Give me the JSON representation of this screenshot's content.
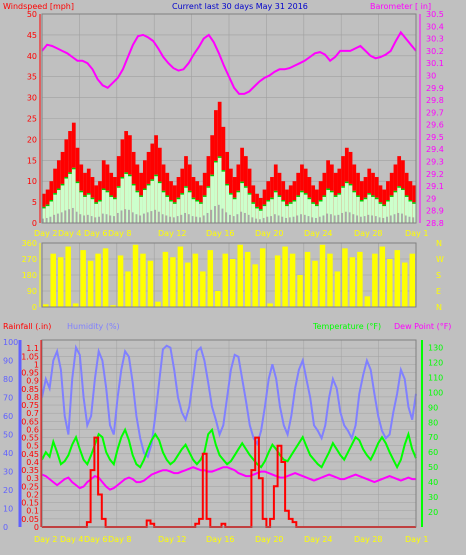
{
  "header": {
    "left": "Windspeed [mph]",
    "center": "Current last 30 days May 31 2016",
    "right": "Barometer [ in]"
  },
  "lower_header": {
    "rainfall": "Rainfall (.in)",
    "humidity": "Humidity (%)",
    "temperature": "Temperature (°F)",
    "dewpoint": "Dew Point (°F)"
  },
  "colors": {
    "background": "#c0c0c0",
    "wind": "#ff0000",
    "wind_gust": "#00cc00",
    "wind_avg": "#ccffcc",
    "wind_min": "#a8a8a8",
    "barometer": "#ff00ff",
    "direction": "#ffff00",
    "humidity": "#8080ff",
    "temperature": "#00ff00",
    "dewpoint": "#ff00ff",
    "rainfall": "#ff0000",
    "axis_red": "#ff0000",
    "axis_blue": "#6060ff",
    "axis_green": "#00ff00",
    "axis_magenta": "#ff00ff",
    "date_yellow": "#ffff00"
  },
  "date_labels": [
    "Day 2",
    "Day 4",
    "Day 6",
    "Day 8",
    "Day 12",
    "Day 16",
    "Day 20",
    "Day 24",
    "Day 28",
    "Day 1"
  ],
  "chart_data": [
    {
      "type": "bar",
      "title": "Windspeed [mph]",
      "ylabel": "Windspeed [mph]",
      "y2label": "Barometer [ in]",
      "ylim": [
        0,
        50
      ],
      "y2lim": [
        28.8,
        30.5
      ],
      "yticks": [
        "0",
        "5",
        "10",
        "15",
        "20",
        "25",
        "30",
        "35",
        "40",
        "45",
        "50"
      ],
      "y2ticks": [
        "28.8",
        "28.9",
        "29",
        "29.1",
        "29.2",
        "29.3",
        "29.4",
        "29.5",
        "29.6",
        "29.7",
        "29.8",
        "29.9",
        "30",
        "30.1",
        "30.2",
        "30.3",
        "30.4",
        "30.5"
      ],
      "grid": true,
      "series": [
        {
          "name": "Windspeed",
          "values": [
            7,
            8,
            10,
            13,
            15,
            17,
            20,
            22,
            24,
            18,
            14,
            12,
            13,
            11,
            9,
            10,
            15,
            14,
            12,
            11,
            16,
            20,
            22,
            21,
            17,
            14,
            12,
            15,
            17,
            19,
            21,
            18,
            14,
            12,
            10,
            9,
            11,
            13,
            16,
            14,
            11,
            10,
            9,
            12,
            16,
            21,
            27,
            29,
            23,
            17,
            13,
            11,
            14,
            18,
            16,
            13,
            9,
            7,
            6,
            8,
            10,
            11,
            14,
            12,
            10,
            8,
            9,
            10,
            12,
            14,
            13,
            11,
            9,
            8,
            10,
            12,
            15,
            14,
            12,
            13,
            16,
            18,
            17,
            14,
            12,
            10,
            11,
            13,
            12,
            11,
            9,
            8,
            10,
            12,
            14,
            16,
            15,
            12,
            10,
            9
          ]
        },
        {
          "name": "Barometer",
          "values": [
            30.2,
            30.25,
            30.24,
            30.22,
            30.2,
            30.18,
            30.15,
            30.12,
            30.12,
            30.1,
            30.05,
            29.97,
            29.92,
            29.9,
            29.94,
            29.98,
            30.05,
            30.15,
            30.25,
            30.32,
            30.33,
            30.31,
            30.28,
            30.22,
            30.15,
            30.1,
            30.06,
            30.04,
            30.05,
            30.1,
            30.17,
            30.23,
            30.3,
            30.33,
            30.27,
            30.18,
            30.08,
            29.99,
            29.9,
            29.85,
            29.85,
            29.87,
            29.91,
            29.95,
            29.98,
            30.0,
            30.03,
            30.05,
            30.05,
            30.06,
            30.08,
            30.1,
            30.12,
            30.15,
            30.18,
            30.19,
            30.17,
            30.12,
            30.15,
            30.2,
            30.2,
            30.2,
            30.22,
            30.24,
            30.2,
            30.16,
            30.14,
            30.15,
            30.17,
            30.2,
            30.28,
            30.35,
            30.3,
            30.25,
            30.2
          ]
        }
      ]
    },
    {
      "type": "bar",
      "title": "",
      "ylabel": "Wind direction",
      "ylim": [
        0,
        360
      ],
      "yticks": [
        "0",
        "90",
        "180",
        "270",
        "360"
      ],
      "y2ticks": [
        "N",
        "W",
        "S",
        "E",
        "N"
      ],
      "grid": true,
      "series": [
        {
          "name": "Direction",
          "values": [
            15,
            300,
            280,
            340,
            20,
            320,
            260,
            300,
            330,
            10,
            290,
            200,
            350,
            300,
            260,
            30,
            310,
            280,
            340,
            250,
            300,
            200,
            320,
            90,
            300,
            270,
            350,
            310,
            240,
            330,
            20,
            290,
            340,
            300,
            180,
            310,
            260,
            350,
            300,
            200,
            330,
            280,
            310,
            60,
            300,
            340,
            270,
            320,
            250,
            300
          ]
        }
      ]
    },
    {
      "type": "line",
      "title": "",
      "ylabel": "Rainfall (.in) / Humidity (%)",
      "y2label": "Temperature (°F) / Dew Point (°F)",
      "ylim": [
        0,
        1.15
      ],
      "y2lim": [
        10,
        135
      ],
      "humidity_lim": [
        0,
        100
      ],
      "yticks_rain": [
        "0",
        "0.05",
        "0.1",
        "0.15",
        "0.2",
        "0.25",
        "0.3",
        "0.35",
        "0.4",
        "0.45",
        "0.5",
        "0.55",
        "0.6",
        "0.65",
        "0.7",
        "0.75",
        "0.8",
        "0.85",
        "0.9",
        "0.95",
        "1",
        "1.05",
        "1.1"
      ],
      "yticks_hum": [
        "0",
        "10",
        "20",
        "30",
        "40",
        "50",
        "60",
        "70",
        "80",
        "90",
        "100"
      ],
      "y2ticks": [
        "20",
        "30",
        "40",
        "50",
        "60",
        "70",
        "80",
        "90",
        "100",
        "110",
        "120",
        "130"
      ],
      "grid": true,
      "series": [
        {
          "name": "Humidity",
          "values": [
            70,
            80,
            75,
            90,
            95,
            85,
            60,
            50,
            80,
            97,
            93,
            70,
            55,
            60,
            80,
            95,
            90,
            75,
            55,
            50,
            70,
            85,
            95,
            92,
            78,
            60,
            48,
            40,
            38,
            45,
            60,
            78,
            96,
            98,
            97,
            85,
            70,
            62,
            58,
            65,
            80,
            95,
            97,
            90,
            78,
            65,
            58,
            50,
            55,
            70,
            85,
            93,
            92,
            80,
            68,
            55,
            48,
            45,
            52,
            65,
            80,
            88,
            80,
            65,
            55,
            50,
            60,
            75,
            85,
            90,
            80,
            70,
            55,
            52,
            48,
            55,
            70,
            80,
            75,
            62,
            55,
            52,
            48,
            55,
            72,
            82,
            90,
            85,
            72,
            60,
            52,
            48,
            50,
            62,
            72,
            85,
            80,
            65,
            58,
            72
          ]
        },
        {
          "name": "Temperature",
          "values": [
            55,
            60,
            57,
            67,
            60,
            52,
            54,
            58,
            65,
            70,
            62,
            55,
            52,
            58,
            65,
            72,
            70,
            60,
            55,
            52,
            62,
            70,
            75,
            68,
            58,
            52,
            50,
            55,
            62,
            68,
            72,
            68,
            60,
            55,
            52,
            54,
            58,
            62,
            65,
            60,
            55,
            52,
            55,
            60,
            72,
            75,
            65,
            58,
            55,
            52,
            54,
            58,
            62,
            66,
            62,
            58,
            55,
            52,
            50,
            54,
            60,
            65,
            62,
            58,
            55,
            54,
            58,
            62,
            66,
            70,
            64,
            58,
            55,
            52,
            50,
            55,
            60,
            66,
            62,
            58,
            55,
            60,
            65,
            70,
            68,
            62,
            58,
            55,
            60,
            66,
            70,
            66,
            60,
            55,
            50,
            55,
            65,
            72,
            62,
            56
          ]
        },
        {
          "name": "Dew Point",
          "values": [
            45,
            44,
            42,
            40,
            38,
            40,
            42,
            43,
            40,
            38,
            36,
            37,
            40,
            42,
            44,
            43,
            40,
            37,
            35,
            36,
            38,
            40,
            42,
            43,
            42,
            40,
            40,
            41,
            43,
            45,
            46,
            47,
            48,
            48,
            47,
            46,
            46,
            47,
            48,
            49,
            50,
            49,
            48,
            48,
            47,
            47,
            48,
            49,
            50,
            50,
            49,
            48,
            46,
            45,
            44,
            44,
            45,
            46,
            47,
            47,
            46,
            45,
            44,
            43,
            43,
            44,
            45,
            46,
            45,
            44,
            43,
            42,
            41,
            42,
            43,
            44,
            45,
            44,
            43,
            42,
            42,
            43,
            44,
            45,
            44,
            43,
            42,
            41,
            40,
            41,
            42,
            43,
            44,
            43,
            42,
            41,
            42,
            43,
            42,
            42
          ]
        },
        {
          "name": "Rainfall",
          "values": [
            0,
            0,
            0,
            0,
            0,
            0,
            0,
            0,
            0,
            0,
            0,
            0,
            0.03,
            0.35,
            0.55,
            0.2,
            0.05,
            0,
            0,
            0,
            0,
            0,
            0,
            0,
            0,
            0,
            0,
            0,
            0.04,
            0.02,
            0,
            0,
            0,
            0,
            0,
            0,
            0,
            0,
            0,
            0,
            0,
            0.02,
            0.05,
            0.45,
            0.05,
            0,
            0,
            0,
            0.02,
            0,
            0,
            0,
            0,
            0,
            0,
            0,
            0.35,
            0.55,
            0.3,
            0.05,
            0,
            0.05,
            0.25,
            0.5,
            0.4,
            0.1,
            0.05,
            0.03,
            0,
            0,
            0,
            0,
            0,
            0,
            0,
            0,
            0,
            0,
            0,
            0,
            0,
            0,
            0,
            0,
            0,
            0,
            0,
            0,
            0,
            0,
            0,
            0,
            0,
            0,
            0,
            0,
            0,
            0,
            0,
            0
          ]
        }
      ]
    }
  ]
}
